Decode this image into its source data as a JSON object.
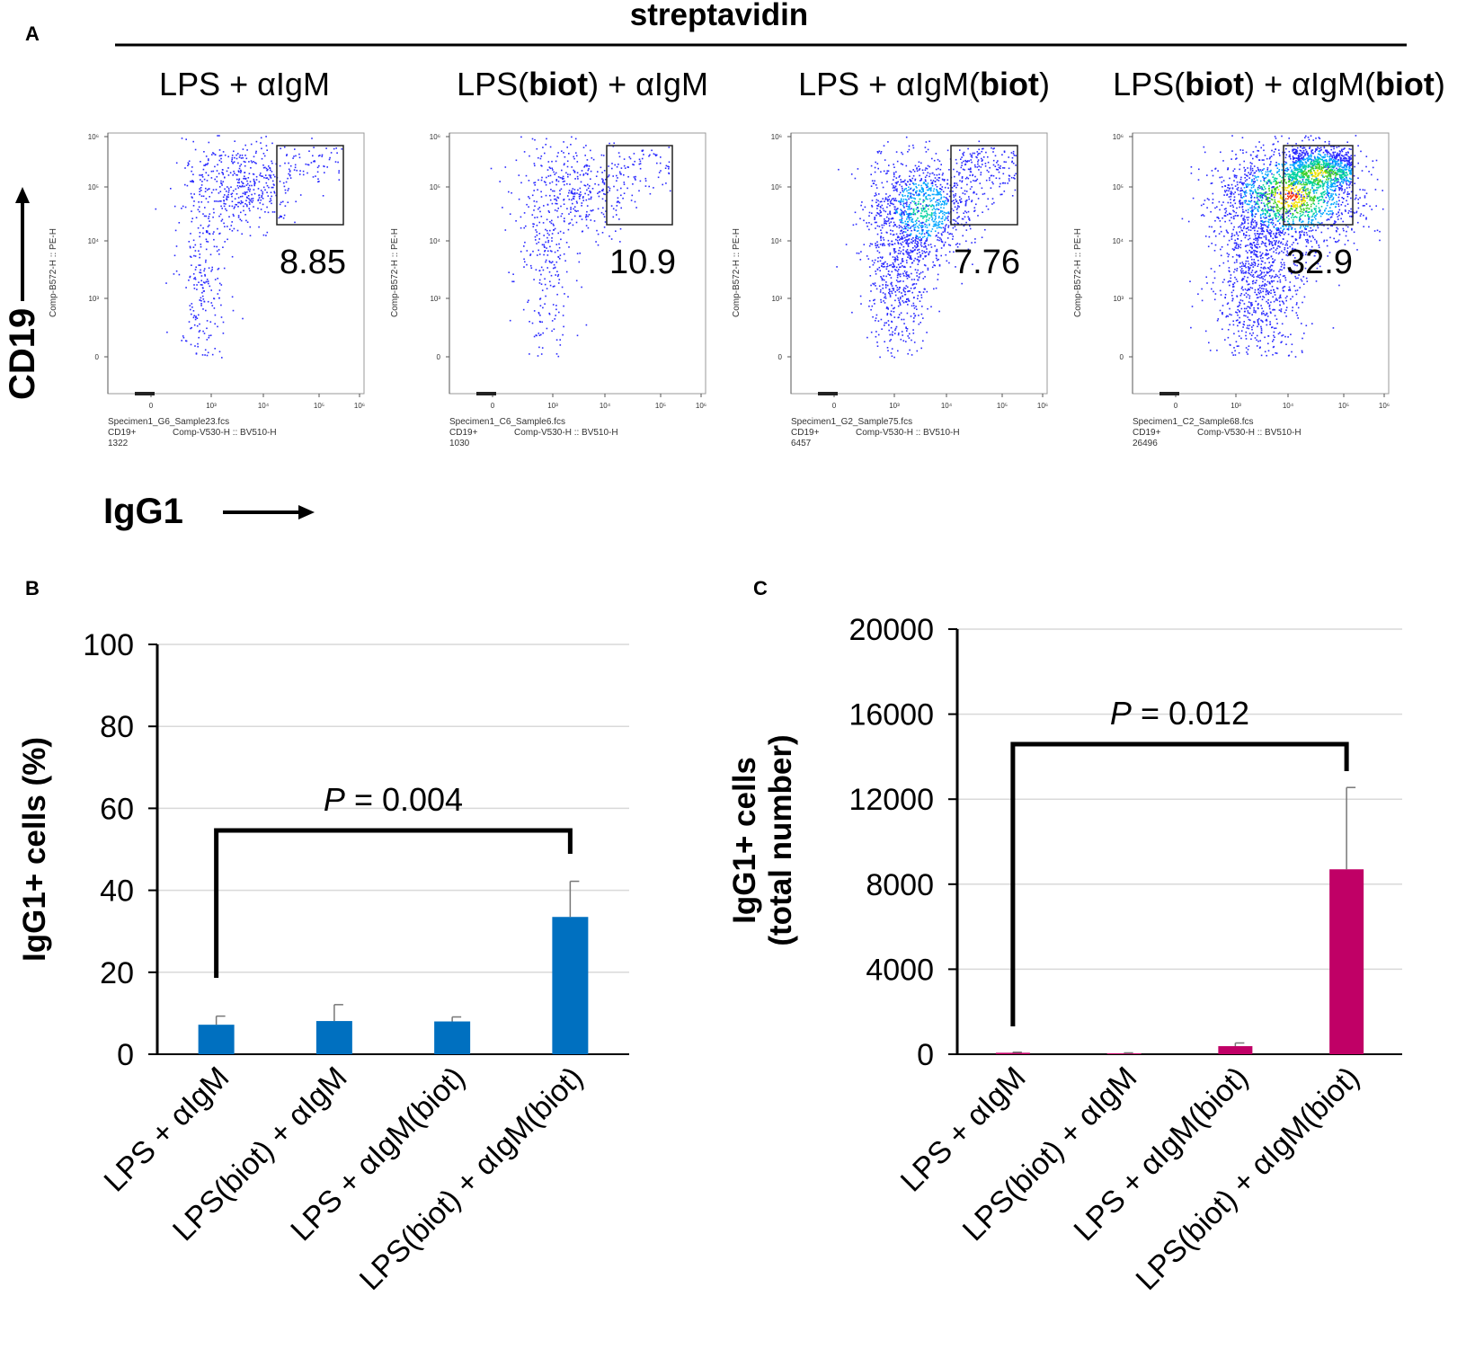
{
  "panels": {
    "a": "A",
    "b": "B",
    "c": "C"
  },
  "top_label": "streptavidin",
  "conditions": [
    {
      "plain1": "LPS + αIgM",
      "bold1": "",
      "plain2": "",
      "bold2": "",
      "plain3": ""
    },
    {
      "plain1": "LPS(",
      "bold1": "biot",
      "plain2": ") + αIgM",
      "bold2": "",
      "plain3": ""
    },
    {
      "plain1": "LPS + αIgM(",
      "bold1": "",
      "plain2": "",
      "bold2": "biot",
      "plain3": ")"
    },
    {
      "plain1": "LPS(",
      "bold1": "biot",
      "plain2": ") + αIgM(",
      "bold2": "biot",
      "plain3": ")"
    }
  ],
  "flow_plots": [
    {
      "percent": "8.85",
      "file": "Specimen1_G6_Sample23.fcs",
      "gate": "CD19+",
      "count": "1322",
      "x_param": "Comp-V530-H :: BV510-H",
      "y_param": "Comp-B572-H :: PE-H"
    },
    {
      "percent": "10.9",
      "file": "Specimen1_C6_Sample6.fcs",
      "gate": "CD19+",
      "count": "1030",
      "x_param": "Comp-V530-H :: BV510-H",
      "y_param": "Comp-B572-H :: PE-H"
    },
    {
      "percent": "7.76",
      "file": "Specimen1_G2_Sample75.fcs",
      "gate": "CD19+",
      "count": "6457",
      "x_param": "Comp-V530-H :: BV510-H",
      "y_param": "Comp-B572-H :: PE-H"
    },
    {
      "percent": "32.9",
      "file": "Specimen1_C2_Sample68.fcs",
      "gate": "CD19+",
      "count": "26496",
      "x_param": "Comp-V530-H :: BV510-H",
      "y_param": "Comp-B572-H :: PE-H"
    }
  ],
  "flow_axes": {
    "y_title": "CD19",
    "x_title": "IgG1",
    "x_ticks": [
      "0",
      "10³",
      "10⁴",
      "10⁵",
      "10⁶"
    ],
    "y_ticks": [
      "10⁶",
      "10⁵",
      "10⁴",
      "10³",
      "0"
    ]
  },
  "colors": {
    "bar_b": "#0070C0",
    "bar_c": "#C00066",
    "grid": "#d9d9d9"
  },
  "chart_data": [
    {
      "type": "bar",
      "title": "",
      "categories": [
        "LPS + αIgM",
        "LPS(biot) + αIgM",
        "LPS + αIgM(biot)",
        "LPS(biot) + αIgM(biot)"
      ],
      "values": [
        7.2,
        8.1,
        8.0,
        33.5
      ],
      "errors": [
        2.1,
        4.0,
        1.1,
        8.7
      ],
      "ylabel": "IgG1+ cells (%)",
      "ylim": [
        0,
        100
      ],
      "yticks": [
        0,
        20,
        40,
        60,
        80,
        100
      ],
      "grid": true,
      "annotation": {
        "p_italic": "P",
        "p_text": "= 0.004",
        "from": 0,
        "to": 3
      }
    },
    {
      "type": "bar",
      "title": "",
      "categories": [
        "LPS + αIgM",
        "LPS(biot) + αIgM",
        "LPS + αIgM(biot)",
        "LPS(biot) + αIgM(biot)"
      ],
      "values": [
        70,
        45,
        380,
        8700
      ],
      "errors": [
        25,
        20,
        150,
        3850
      ],
      "ylabel": "IgG1+ cells",
      "ylabel2": "(total number)",
      "ylim": [
        0,
        20000
      ],
      "yticks": [
        0,
        4000,
        8000,
        12000,
        16000,
        20000
      ],
      "grid": true,
      "annotation": {
        "p_italic": "P",
        "p_text": "= 0.012",
        "from": 0,
        "to": 3
      }
    }
  ]
}
